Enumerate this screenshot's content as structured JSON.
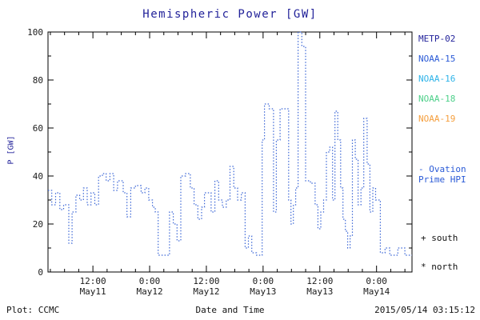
{
  "colors": {
    "title": "#23239a",
    "axis": "#000000",
    "tick_text": "#1a1a1a",
    "line": "#3b66d6"
  },
  "chart_data": {
    "type": "line",
    "style": "step-dotted",
    "title": "Hemispheric Power [GW]",
    "xlabel": "Date and Time",
    "ylabel": "P [GW]",
    "ylim": [
      0,
      100
    ],
    "yticks": [
      0,
      20,
      40,
      60,
      80,
      100
    ],
    "x_unit": "hours since 2015-05-11 00:00",
    "xlim": [
      2.5,
      79.5
    ],
    "xticks": [
      {
        "h": 12,
        "time": "12:00",
        "date": "May11"
      },
      {
        "h": 24,
        "time": "0:00",
        "date": "May12"
      },
      {
        "h": 36,
        "time": "12:00",
        "date": "May12"
      },
      {
        "h": 48,
        "time": "0:00",
        "date": "May13"
      },
      {
        "h": 60,
        "time": "12:00",
        "date": "May13"
      },
      {
        "h": 72,
        "time": "0:00",
        "date": "May14"
      }
    ],
    "series": [
      {
        "name": "Ovation Prime HPI",
        "color": "#3b66d6",
        "points": [
          [
            2.5,
            34
          ],
          [
            3.3,
            28
          ],
          [
            4.1,
            33
          ],
          [
            5.0,
            26
          ],
          [
            5.8,
            28
          ],
          [
            6.9,
            12
          ],
          [
            7.6,
            25
          ],
          [
            8.4,
            32
          ],
          [
            9.2,
            30
          ],
          [
            10.0,
            35
          ],
          [
            10.8,
            28
          ],
          [
            11.6,
            33
          ],
          [
            12.4,
            28
          ],
          [
            13.2,
            40
          ],
          [
            14.0,
            41
          ],
          [
            14.8,
            38
          ],
          [
            15.6,
            41
          ],
          [
            16.4,
            34
          ],
          [
            17.2,
            38
          ],
          [
            18.4,
            33
          ],
          [
            19.2,
            23
          ],
          [
            20.0,
            35
          ],
          [
            21.0,
            36
          ],
          [
            22.2,
            33
          ],
          [
            23.0,
            35
          ],
          [
            23.8,
            30
          ],
          [
            24.6,
            27
          ],
          [
            25.2,
            25
          ],
          [
            25.8,
            7
          ],
          [
            27.5,
            7
          ],
          [
            28.2,
            25
          ],
          [
            29.0,
            20
          ],
          [
            29.8,
            13
          ],
          [
            30.6,
            40
          ],
          [
            31.6,
            41
          ],
          [
            32.6,
            35
          ],
          [
            33.4,
            28
          ],
          [
            34.2,
            22
          ],
          [
            35.0,
            27
          ],
          [
            35.6,
            33
          ],
          [
            36.4,
            33
          ],
          [
            37.0,
            25
          ],
          [
            37.8,
            38
          ],
          [
            38.6,
            30
          ],
          [
            39.4,
            27
          ],
          [
            40.2,
            30
          ],
          [
            41.0,
            44
          ],
          [
            41.8,
            35
          ],
          [
            42.6,
            30
          ],
          [
            43.4,
            33
          ],
          [
            44.2,
            10
          ],
          [
            44.9,
            15
          ],
          [
            45.6,
            8
          ],
          [
            46.6,
            7
          ],
          [
            47.4,
            7
          ],
          [
            47.8,
            55
          ],
          [
            48.3,
            70
          ],
          [
            49.3,
            68
          ],
          [
            50.2,
            25
          ],
          [
            50.8,
            55
          ],
          [
            51.6,
            68
          ],
          [
            52.6,
            68
          ],
          [
            53.4,
            30
          ],
          [
            53.9,
            20
          ],
          [
            54.4,
            28
          ],
          [
            54.9,
            35
          ],
          [
            55.4,
            100
          ],
          [
            56.2,
            94
          ],
          [
            57.0,
            38
          ],
          [
            58.0,
            37
          ],
          [
            59.0,
            28
          ],
          [
            59.6,
            18
          ],
          [
            60.2,
            25
          ],
          [
            60.8,
            30
          ],
          [
            61.4,
            50
          ],
          [
            62.1,
            52
          ],
          [
            62.7,
            30
          ],
          [
            63.2,
            67
          ],
          [
            63.8,
            55
          ],
          [
            64.4,
            35
          ],
          [
            64.9,
            22
          ],
          [
            65.4,
            17
          ],
          [
            65.9,
            10
          ],
          [
            66.4,
            15
          ],
          [
            66.9,
            55
          ],
          [
            67.5,
            47
          ],
          [
            68.1,
            28
          ],
          [
            68.7,
            35
          ],
          [
            69.3,
            64
          ],
          [
            70.0,
            45
          ],
          [
            70.6,
            25
          ],
          [
            71.2,
            35
          ],
          [
            71.8,
            30
          ],
          [
            72.8,
            8
          ],
          [
            73.8,
            10
          ],
          [
            74.8,
            7
          ],
          [
            76.5,
            10
          ],
          [
            78.0,
            7
          ],
          [
            79.5,
            7
          ]
        ]
      }
    ]
  },
  "legend": {
    "satellites": [
      {
        "label": "METP-02",
        "color": "#23239b"
      },
      {
        "label": "NOAA-15",
        "color": "#2b5bd7"
      },
      {
        "label": "NOAA-16",
        "color": "#2fb4e9"
      },
      {
        "label": "NOAA-18",
        "color": "#4ed08a"
      },
      {
        "label": "NOAA-19",
        "color": "#f59f3e"
      }
    ],
    "ovation": {
      "line1": "- Ovation",
      "line2": "Prime HPI",
      "color": "#2b5bd7"
    },
    "markers": [
      {
        "marker": "+",
        "label": "south"
      },
      {
        "marker": "*",
        "label": "north"
      }
    ]
  },
  "footer": {
    "credit": "Plot: CCMC",
    "timestamp": "2015/05/14 03:15:12"
  }
}
